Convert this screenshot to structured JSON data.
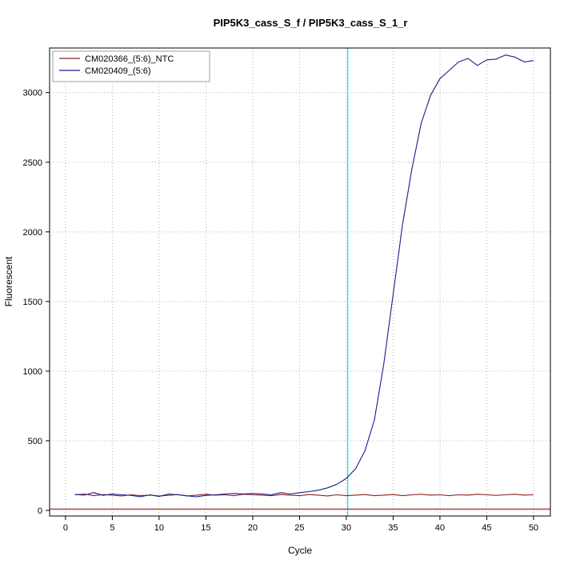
{
  "chart_data": {
    "type": "line",
    "title": "PIP5K3_cass_S_f / PIP5K3_cass_S_1_r",
    "xlabel": "Cycle",
    "ylabel": "Fluorescent",
    "xlim": [
      -1.7,
      51.8
    ],
    "ylim": [
      -40,
      3320
    ],
    "xticks": [
      0,
      5,
      10,
      15,
      20,
      25,
      30,
      35,
      40,
      45,
      50
    ],
    "yticks": [
      0,
      500,
      1000,
      1500,
      2000,
      2500,
      3000
    ],
    "grid": "dotted",
    "legend_position": "top-left",
    "x": [
      1,
      2,
      3,
      4,
      5,
      6,
      7,
      8,
      9,
      10,
      11,
      12,
      13,
      14,
      15,
      16,
      17,
      18,
      19,
      20,
      21,
      22,
      23,
      24,
      25,
      26,
      27,
      28,
      29,
      30,
      31,
      32,
      33,
      34,
      35,
      36,
      37,
      38,
      39,
      40,
      41,
      42,
      43,
      44,
      45,
      46,
      47,
      48,
      49,
      50
    ],
    "series": [
      {
        "name": "CM020366_(5:6)_NTC",
        "color": "#8b2323",
        "values": [
          112,
          118,
          106,
          114,
          110,
          104,
          112,
          106,
          110,
          104,
          108,
          114,
          104,
          110,
          116,
          110,
          112,
          106,
          116,
          112,
          110,
          106,
          114,
          110,
          106,
          114,
          110,
          104,
          112,
          106,
          110,
          114,
          106,
          110,
          114,
          106,
          112,
          116,
          110,
          112,
          106,
          112,
          110,
          116,
          112,
          108,
          112,
          116,
          110,
          112
        ]
      },
      {
        "name": "CM020409_(5:6)",
        "color": "#1c1c8c",
        "values": [
          115,
          110,
          128,
          108,
          118,
          112,
          108,
          98,
          112,
          100,
          118,
          112,
          105,
          98,
          108,
          112,
          118,
          122,
          118,
          122,
          118,
          112,
          128,
          118,
          128,
          135,
          145,
          162,
          188,
          230,
          300,
          430,
          650,
          1050,
          1550,
          2050,
          2450,
          2780,
          2980,
          3100,
          3160,
          3220,
          3245,
          3195,
          3235,
          3240,
          3270,
          3255,
          3220,
          3230
        ]
      }
    ],
    "threshold_line": {
      "y": 10,
      "color": "#8b0000"
    },
    "marker_line": {
      "x": 30.15,
      "color": "#00e5e5"
    },
    "colors": {
      "axis": "#000000",
      "grid": "#b0b0b0",
      "legend_border": "#888888",
      "background": "#ffffff"
    }
  }
}
